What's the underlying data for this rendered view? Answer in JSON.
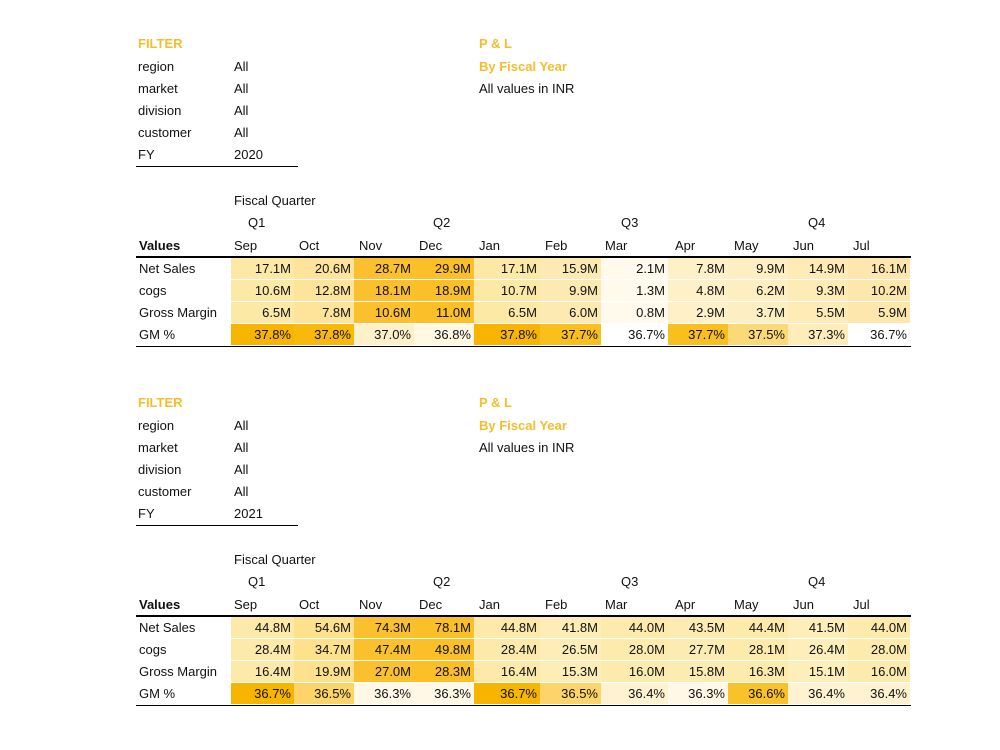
{
  "reports": [
    {
      "filter": {
        "title": "FILTER",
        "rows": [
          {
            "label": "region",
            "value": "All"
          },
          {
            "label": "market",
            "value": "All"
          },
          {
            "label": "division",
            "value": "All"
          },
          {
            "label": "customer",
            "value": "All"
          },
          {
            "label": "FY",
            "value": "2020"
          }
        ]
      },
      "header": {
        "title": "P & L",
        "subtitle": "By Fiscal Year",
        "note": "All values in INR"
      },
      "table": {
        "caption": "Fiscal Quarter",
        "quarters": [
          "Q1",
          "Q2",
          "Q3",
          "Q4"
        ],
        "values_label": "Values",
        "months": [
          "Sep",
          "Oct",
          "Nov",
          "Dec",
          "Jan",
          "Feb",
          "Mar",
          "Apr",
          "May",
          "Jun",
          "Jul"
        ],
        "rows": [
          {
            "label": "Net Sales",
            "values": [
              "17.1M",
              "20.6M",
              "28.7M",
              "29.9M",
              "17.1M",
              "15.9M",
              "2.1M",
              "7.8M",
              "9.9M",
              "14.9M",
              "16.1M"
            ],
            "colors": [
              "#fde9a6",
              "#fde49a",
              "#fbc02d",
              "#fbbf28",
              "#fde9a6",
              "#fdeab3",
              "#fffaeb",
              "#fff1c7",
              "#feefc2",
              "#feebb6",
              "#fde7ac"
            ]
          },
          {
            "label": "cogs",
            "values": [
              "10.6M",
              "12.8M",
              "18.1M",
              "18.9M",
              "10.7M",
              "9.9M",
              "1.3M",
              "4.8M",
              "6.2M",
              "9.3M",
              "10.2M"
            ],
            "colors": [
              "#fde9a6",
              "#fde49a",
              "#fbc02d",
              "#fbbf28",
              "#fde9a6",
              "#fdeab3",
              "#fffaeb",
              "#fff1c7",
              "#feefc2",
              "#feebb6",
              "#fde7ac"
            ]
          },
          {
            "label": "Gross Margin",
            "values": [
              "6.5M",
              "7.8M",
              "10.6M",
              "11.0M",
              "6.5M",
              "6.0M",
              "0.8M",
              "2.9M",
              "3.7M",
              "5.5M",
              "5.9M"
            ],
            "colors": [
              "#fde9a6",
              "#fde49a",
              "#fbc02d",
              "#fbbf28",
              "#fde9a6",
              "#fdeab3",
              "#fffaeb",
              "#fff1c7",
              "#feefc2",
              "#feebb6",
              "#fde7ac"
            ]
          },
          {
            "label": "GM %",
            "values": [
              "37.8%",
              "37.8%",
              "37.0%",
              "36.8%",
              "37.8%",
              "37.7%",
              "36.7%",
              "37.7%",
              "37.5%",
              "37.3%",
              "36.7%"
            ],
            "colors": [
              "#f7b500",
              "#f8b90a",
              "#fdf1c9",
              "#fff8e3",
              "#f7b500",
              "#f9bf1c",
              "#ffffff",
              "#f9bf1c",
              "#fcd977",
              "#feedb9",
              "#ffffff"
            ]
          }
        ]
      }
    },
    {
      "filter": {
        "title": "FILTER",
        "rows": [
          {
            "label": "region",
            "value": "All"
          },
          {
            "label": "market",
            "value": "All"
          },
          {
            "label": "division",
            "value": "All"
          },
          {
            "label": "customer",
            "value": "All"
          },
          {
            "label": "FY",
            "value": "2021"
          }
        ]
      },
      "header": {
        "title": "P & L",
        "subtitle": "By Fiscal Year",
        "note": "All values in INR"
      },
      "table": {
        "caption": "Fiscal Quarter",
        "quarters": [
          "Q1",
          "Q2",
          "Q3",
          "Q4"
        ],
        "values_label": "Values",
        "months": [
          "Sep",
          "Oct",
          "Nov",
          "Dec",
          "Jan",
          "Feb",
          "Mar",
          "Apr",
          "May",
          "Jun",
          "Jul"
        ],
        "rows": [
          {
            "label": "Net Sales",
            "values": [
              "44.8M",
              "54.6M",
              "74.3M",
              "78.1M",
              "44.8M",
              "41.8M",
              "44.0M",
              "43.5M",
              "44.4M",
              "41.5M",
              "44.0M"
            ],
            "colors": [
              "#fdeaaa",
              "#fde18c",
              "#fbc02d",
              "#fbbf28",
              "#fdeaaa",
              "#feedb7",
              "#fdebae",
              "#fdecb2",
              "#fdebac",
              "#feeeba",
              "#fdebae"
            ]
          },
          {
            "label": "cogs",
            "values": [
              "28.4M",
              "34.7M",
              "47.4M",
              "49.8M",
              "28.4M",
              "26.5M",
              "28.0M",
              "27.7M",
              "28.1M",
              "26.4M",
              "28.0M"
            ],
            "colors": [
              "#fdeaaa",
              "#fde18c",
              "#fbc02d",
              "#fbbf28",
              "#fdeaaa",
              "#feedb7",
              "#fdebae",
              "#fdecb2",
              "#fdebac",
              "#feeeba",
              "#fdebae"
            ]
          },
          {
            "label": "Gross Margin",
            "values": [
              "16.4M",
              "19.9M",
              "27.0M",
              "28.3M",
              "16.4M",
              "15.3M",
              "16.0M",
              "15.8M",
              "16.3M",
              "15.1M",
              "16.0M"
            ],
            "colors": [
              "#fdeaaa",
              "#fde18c",
              "#fbc02d",
              "#fbbf28",
              "#fdeaaa",
              "#feedb7",
              "#fdebae",
              "#fdecb2",
              "#fdebac",
              "#feeeba",
              "#fdebae"
            ]
          },
          {
            "label": "GM %",
            "values": [
              "36.7%",
              "36.5%",
              "36.3%",
              "36.3%",
              "36.7%",
              "36.5%",
              "36.4%",
              "36.3%",
              "36.6%",
              "36.4%",
              "36.4%"
            ],
            "colors": [
              "#f7b500",
              "#fcd46a",
              "#fff8e6",
              "#fff8e6",
              "#f7b500",
              "#fcd46a",
              "#fff2d0",
              "#fff8e6",
              "#f9c12a",
              "#fff2d0",
              "#fff2d0"
            ]
          }
        ]
      }
    }
  ]
}
